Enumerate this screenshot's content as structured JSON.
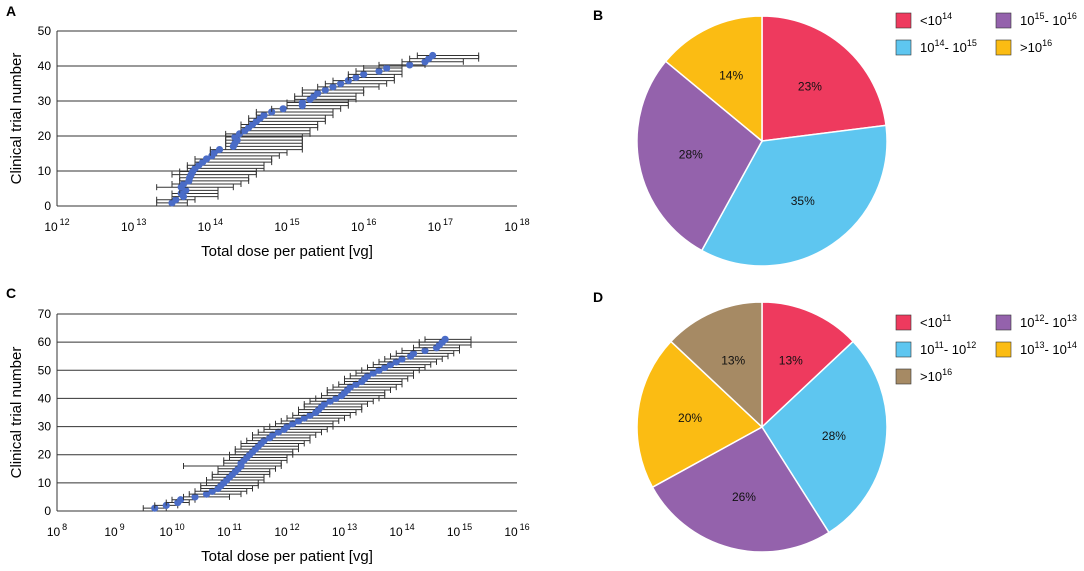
{
  "panels": {
    "A": "A",
    "B": "B",
    "C": "C",
    "D": "D"
  },
  "colors": {
    "marker": "#4a6cc7",
    "errorbar": "#333333",
    "grid": "#333333",
    "red": "#ee3a5e",
    "blue": "#5ec6f0",
    "purple": "#9462ac",
    "yellow": "#fbbc13",
    "tan": "#a68a64"
  },
  "chart_data": [
    {
      "id": "A",
      "type": "scatter",
      "title": "",
      "xlabel": "Total dose per patient [vg]",
      "ylabel": "Clinical trial number",
      "xscale": "log10",
      "xlim_exp": [
        12,
        18
      ],
      "ylim": [
        0,
        50
      ],
      "yticks": [
        "0",
        "10",
        "20",
        "30",
        "40",
        "50"
      ],
      "xtick_exponents": [
        12,
        13,
        14,
        15,
        16,
        17,
        18
      ],
      "xtick_base": "10",
      "grid": "horizontal",
      "points_log10_dose": [
        13.5,
        13.55,
        13.65,
        13.62,
        13.68,
        13.62,
        13.65,
        13.72,
        13.73,
        13.75,
        13.77,
        13.8,
        13.85,
        13.9,
        13.95,
        14.02,
        14.05,
        14.12,
        14.3,
        14.32,
        14.35,
        14.32,
        14.38,
        14.45,
        14.5,
        14.55,
        14.6,
        14.65,
        14.7,
        14.8,
        14.95,
        15.2,
        15.2,
        15.3,
        15.35,
        15.4,
        15.5,
        15.6,
        15.7,
        15.8,
        15.9,
        16.0,
        16.2,
        16.3,
        16.6,
        16.8,
        16.85,
        16.9
      ],
      "errorbars_log10": [
        [
          13.3,
          13.7
        ],
        [
          13.3,
          13.8
        ],
        [
          13.5,
          14.1
        ],
        [
          13.5,
          14.1
        ],
        [
          13.6,
          14.1
        ],
        [
          13.3,
          14.3
        ],
        [
          13.5,
          14.4
        ],
        [
          13.6,
          14.5
        ],
        [
          13.6,
          14.5
        ],
        [
          13.5,
          14.6
        ],
        [
          13.6,
          14.6
        ],
        [
          13.7,
          14.7
        ],
        [
          13.7,
          14.7
        ],
        [
          13.8,
          14.8
        ],
        [
          13.8,
          14.8
        ],
        [
          14.0,
          14.9
        ],
        [
          14.0,
          15.0
        ],
        [
          14.0,
          15.2
        ],
        [
          14.2,
          15.2
        ],
        [
          14.2,
          15.2
        ],
        [
          14.2,
          15.2
        ],
        [
          14.2,
          15.2
        ],
        [
          14.2,
          15.3
        ],
        [
          14.4,
          15.3
        ],
        [
          14.4,
          15.4
        ],
        [
          14.4,
          15.4
        ],
        [
          14.5,
          15.5
        ],
        [
          14.5,
          15.5
        ],
        [
          14.6,
          15.6
        ],
        [
          14.6,
          15.6
        ],
        [
          14.8,
          15.7
        ],
        [
          15.0,
          15.8
        ],
        [
          15.0,
          15.8
        ],
        [
          15.1,
          15.9
        ],
        [
          15.1,
          15.9
        ],
        [
          15.2,
          16.0
        ],
        [
          15.2,
          16.0
        ],
        [
          15.4,
          16.2
        ],
        [
          15.5,
          16.3
        ],
        [
          15.6,
          16.4
        ],
        [
          15.8,
          16.4
        ],
        [
          15.8,
          16.5
        ],
        [
          15.9,
          16.5
        ],
        [
          16.0,
          16.5
        ],
        [
          16.2,
          16.8
        ],
        [
          16.5,
          17.3
        ],
        [
          16.6,
          17.5
        ],
        [
          16.7,
          17.5
        ]
      ]
    },
    {
      "id": "B",
      "type": "pie",
      "labels": [
        "<10^14",
        "10^14- 10^15",
        "10^15- 10^16",
        ">10^16"
      ],
      "values": [
        23,
        35,
        28,
        14
      ],
      "value_labels": [
        "23%",
        "35%",
        "28%",
        "14%"
      ],
      "legend": [
        {
          "text": "<10",
          "sup": "14",
          "after": "",
          "color_key": "red"
        },
        {
          "text": "10",
          "sup": "15",
          "after": "- 10",
          "sup2": "16",
          "color_key": "purple"
        },
        {
          "text": "10",
          "sup": "14",
          "after": "- 10",
          "sup2": "15",
          "color_key": "blue"
        },
        {
          "text": ">10",
          "sup": "16",
          "after": "",
          "color_key": "yellow"
        }
      ],
      "legend_position": "top-right"
    },
    {
      "id": "C",
      "type": "scatter",
      "title": "",
      "xlabel": "Total dose per patient [vg]",
      "ylabel": "Clinical trial number",
      "xscale": "log10",
      "xlim_exp": [
        8,
        16
      ],
      "ylim": [
        0,
        70
      ],
      "yticks": [
        "0",
        "10",
        "20",
        "30",
        "40",
        "50",
        "60",
        "70"
      ],
      "xtick_exponents": [
        8,
        9,
        10,
        11,
        12,
        13,
        14,
        15,
        16
      ],
      "xtick_base": "10",
      "grid": "horizontal",
      "points_log10_dose": [
        9.7,
        9.9,
        10.1,
        10.15,
        10.4,
        10.6,
        10.7,
        10.8,
        10.85,
        10.9,
        10.95,
        11.0,
        11.05,
        11.1,
        11.15,
        11.2,
        11.2,
        11.25,
        11.3,
        11.35,
        11.4,
        11.45,
        11.5,
        11.55,
        11.6,
        11.7,
        11.75,
        11.85,
        11.95,
        12.0,
        12.1,
        12.2,
        12.3,
        12.4,
        12.5,
        12.55,
        12.6,
        12.65,
        12.75,
        12.85,
        12.95,
        13.0,
        13.05,
        13.1,
        13.2,
        13.3,
        13.35,
        13.4,
        13.5,
        13.6,
        13.7,
        13.8,
        13.9,
        14.0,
        14.15,
        14.2,
        14.4,
        14.6,
        14.65,
        14.7,
        14.75
      ],
      "errorbars_log10": [
        [
          9.5,
          9.9
        ],
        [
          9.7,
          10.1
        ],
        [
          9.9,
          10.3
        ],
        [
          10.0,
          10.4
        ],
        [
          10.2,
          11.0
        ],
        [
          10.3,
          11.2
        ],
        [
          10.4,
          11.3
        ],
        [
          10.5,
          11.4
        ],
        [
          10.5,
          11.5
        ],
        [
          10.6,
          11.5
        ],
        [
          10.6,
          11.6
        ],
        [
          10.7,
          11.6
        ],
        [
          10.7,
          11.7
        ],
        [
          10.8,
          11.7
        ],
        [
          10.8,
          11.8
        ],
        [
          10.2,
          11.9
        ],
        [
          10.9,
          11.9
        ],
        [
          10.9,
          12.0
        ],
        [
          11.0,
          12.0
        ],
        [
          11.0,
          12.1
        ],
        [
          11.1,
          12.1
        ],
        [
          11.1,
          12.2
        ],
        [
          11.2,
          12.2
        ],
        [
          11.2,
          12.3
        ],
        [
          11.3,
          12.4
        ],
        [
          11.4,
          12.4
        ],
        [
          11.4,
          12.5
        ],
        [
          11.5,
          12.6
        ],
        [
          11.6,
          12.7
        ],
        [
          11.7,
          12.8
        ],
        [
          11.8,
          12.8
        ],
        [
          11.9,
          12.9
        ],
        [
          12.0,
          13.0
        ],
        [
          12.1,
          13.1
        ],
        [
          12.2,
          13.2
        ],
        [
          12.2,
          13.3
        ],
        [
          12.3,
          13.3
        ],
        [
          12.3,
          13.4
        ],
        [
          12.4,
          13.5
        ],
        [
          12.5,
          13.6
        ],
        [
          12.6,
          13.7
        ],
        [
          12.7,
          13.7
        ],
        [
          12.7,
          13.8
        ],
        [
          12.8,
          13.9
        ],
        [
          12.9,
          14.0
        ],
        [
          13.0,
          14.0
        ],
        [
          13.0,
          14.1
        ],
        [
          13.1,
          14.2
        ],
        [
          13.2,
          14.2
        ],
        [
          13.3,
          14.3
        ],
        [
          13.4,
          14.4
        ],
        [
          13.5,
          14.5
        ],
        [
          13.6,
          14.6
        ],
        [
          13.7,
          14.7
        ],
        [
          13.8,
          14.8
        ],
        [
          13.9,
          14.9
        ],
        [
          14.0,
          15.0
        ],
        [
          14.2,
          15.0
        ],
        [
          14.3,
          15.2
        ],
        [
          14.3,
          15.2
        ],
        [
          14.4,
          15.2
        ]
      ]
    },
    {
      "id": "D",
      "type": "pie",
      "labels": [
        "<10^11",
        "10^11- 10^12",
        "10^12- 10^13",
        "10^13- 10^14",
        ">10^16"
      ],
      "values": [
        13,
        28,
        26,
        20,
        13
      ],
      "value_labels": [
        "13%",
        "28%",
        "26%",
        "20%",
        "13%"
      ],
      "legend": [
        {
          "text": "<10",
          "sup": "11",
          "after": "",
          "color_key": "red"
        },
        {
          "text": "10",
          "sup": "12",
          "after": "- 10",
          "sup2": "13",
          "color_key": "purple"
        },
        {
          "text": "10",
          "sup": "11",
          "after": "- 10",
          "sup2": "12",
          "color_key": "blue"
        },
        {
          "text": "10",
          "sup": "13",
          "after": "- 10",
          "sup2": "14",
          "color_key": "yellow"
        },
        {
          "text": ">10",
          "sup": "16",
          "after": "",
          "color_key": "tan"
        }
      ],
      "legend_position": "top-right"
    }
  ]
}
